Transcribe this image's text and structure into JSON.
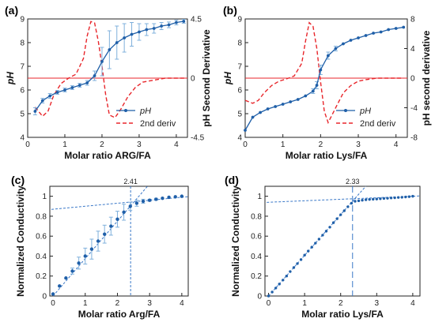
{
  "colors": {
    "ph": "#1f5fa8",
    "deriv": "#e8262b",
    "zero_line": "#e8262b",
    "fit": "#3a78c8",
    "err": "#7fb0dc"
  },
  "chart_data": [
    {
      "panel": "(a)",
      "type": "line",
      "xlabel": "Molar ratio ARG/FA",
      "ylabel": "pH",
      "ylabel_right": "pH Second Derivative",
      "xlim": [
        0,
        4.3
      ],
      "ylim": [
        4,
        9
      ],
      "ylim_right": [
        -4.5,
        4.5
      ],
      "xticks": [
        "0",
        "1",
        "2",
        "3",
        "4"
      ],
      "yticks": [
        "4",
        "5",
        "6",
        "7",
        "8",
        "9"
      ],
      "yticks_right": [
        "-4.5",
        "0",
        "4.5"
      ],
      "legend": [
        "pH",
        "2nd deriv"
      ],
      "series": [
        {
          "name": "pH",
          "x": [
            0.2,
            0.4,
            0.6,
            0.8,
            1.0,
            1.2,
            1.4,
            1.6,
            1.8,
            2.0,
            2.2,
            2.4,
            2.6,
            2.8,
            3.0,
            3.2,
            3.4,
            3.6,
            3.8,
            4.0,
            4.2
          ],
          "y": [
            5.1,
            5.55,
            5.75,
            5.9,
            6.0,
            6.1,
            6.2,
            6.3,
            6.6,
            7.2,
            7.7,
            8.0,
            8.2,
            8.35,
            8.45,
            8.55,
            8.6,
            8.7,
            8.75,
            8.85,
            8.9
          ],
          "err": [
            0.15,
            0.1,
            0.1,
            0.08,
            0.08,
            0.08,
            0.08,
            0.1,
            0.2,
            0.6,
            0.8,
            0.7,
            0.6,
            0.5,
            0.35,
            0.25,
            0.2,
            0.15,
            0.12,
            0.1,
            0.08
          ]
        },
        {
          "name": "2nd deriv",
          "x": [
            0.2,
            0.4,
            0.55,
            0.7,
            0.9,
            1.1,
            1.3,
            1.5,
            1.6,
            1.7,
            1.8,
            1.9,
            2.0,
            2.1,
            2.2,
            2.35,
            2.5,
            2.7,
            2.9,
            3.1,
            3.3,
            3.5,
            3.7,
            3.9,
            4.1,
            4.25
          ],
          "y": [
            -2.2,
            -2.9,
            -2.5,
            -1.3,
            -0.4,
            0,
            0.3,
            1.5,
            3.2,
            4.3,
            4.2,
            2.8,
            0.9,
            -1.3,
            -2.8,
            -3.0,
            -2.4,
            -1.4,
            -0.7,
            -0.3,
            -0.2,
            -0.1,
            0,
            0,
            0,
            0
          ]
        }
      ]
    },
    {
      "panel": "(b)",
      "type": "line",
      "xlabel": "Molar ratio Lys/FA",
      "ylabel": "pH",
      "ylabel_right": "pH second derivative",
      "xlim": [
        0,
        4.3
      ],
      "ylim": [
        4,
        9
      ],
      "ylim_right": [
        -8,
        8
      ],
      "xticks": [
        "0",
        "1",
        "2",
        "3",
        "4"
      ],
      "yticks": [
        "4",
        "5",
        "6",
        "7",
        "8",
        "9"
      ],
      "yticks_right": [
        "-8",
        "-4",
        "0",
        "4",
        "8"
      ],
      "legend": [
        "pH",
        "2nd deriv"
      ],
      "series": [
        {
          "name": "pH",
          "x": [
            0.0,
            0.2,
            0.4,
            0.6,
            0.8,
            1.0,
            1.2,
            1.4,
            1.6,
            1.8,
            1.9,
            2.0,
            2.2,
            2.4,
            2.6,
            2.8,
            3.0,
            3.2,
            3.4,
            3.6,
            3.8,
            4.0,
            4.2
          ],
          "y": [
            4.3,
            4.85,
            5.05,
            5.2,
            5.3,
            5.4,
            5.5,
            5.6,
            5.75,
            5.95,
            6.2,
            6.85,
            7.45,
            7.75,
            7.95,
            8.1,
            8.2,
            8.3,
            8.4,
            8.45,
            8.55,
            8.6,
            8.65
          ],
          "err": [
            0,
            0,
            0,
            0,
            0,
            0,
            0,
            0,
            0,
            0.1,
            0.15,
            0.2,
            0.15,
            0.1,
            0,
            0,
            0,
            0,
            0,
            0,
            0,
            0,
            0
          ]
        },
        {
          "name": "2nd deriv",
          "x": [
            0.0,
            0.2,
            0.35,
            0.5,
            0.7,
            0.9,
            1.1,
            1.3,
            1.5,
            1.6,
            1.7,
            1.8,
            1.9,
            2.0,
            2.1,
            2.2,
            2.3,
            2.45,
            2.6,
            2.8,
            3.0,
            3.2,
            3.5,
            3.8,
            4.2
          ],
          "y": [
            -3.0,
            -3.4,
            -3.0,
            -2.0,
            -1.0,
            -0.4,
            -0.1,
            0.3,
            2.0,
            5.0,
            7.5,
            7.0,
            4.0,
            -0.5,
            -4.5,
            -6.0,
            -5.0,
            -3.5,
            -2.0,
            -1.0,
            -0.4,
            -0.2,
            0,
            0,
            0
          ]
        }
      ]
    },
    {
      "panel": "(c)",
      "type": "scatter",
      "xlabel": "Molar ratio Arg/FA",
      "ylabel": "Normalized Conductivity",
      "xlim": [
        -0.1,
        4.2
      ],
      "ylim": [
        0,
        1.1
      ],
      "xticks": [
        "0",
        "1",
        "2",
        "3",
        "4"
      ],
      "yticks": [
        "0",
        "0.2",
        "0.4",
        "0.6",
        "0.8",
        "1"
      ],
      "annotation": "2.41",
      "intersection_x": 2.41,
      "fit_lines": [
        {
          "slope": 0.375,
          "intercept": 0
        },
        {
          "slope": 0.03,
          "intercept": 0.87
        }
      ],
      "series": [
        {
          "name": "",
          "x": [
            0,
            0.2,
            0.4,
            0.6,
            0.8,
            1.0,
            1.2,
            1.4,
            1.6,
            1.8,
            2.0,
            2.2,
            2.4,
            2.6,
            2.8,
            3.0,
            3.2,
            3.4,
            3.6,
            3.8,
            4.0
          ],
          "y": [
            0.02,
            0.1,
            0.18,
            0.25,
            0.33,
            0.4,
            0.47,
            0.55,
            0.62,
            0.7,
            0.77,
            0.84,
            0.9,
            0.93,
            0.95,
            0.96,
            0.97,
            0.98,
            0.99,
            0.995,
            1.0
          ],
          "err": [
            0,
            0,
            0,
            0.03,
            0.06,
            0.08,
            0.1,
            0.1,
            0.09,
            0.09,
            0.08,
            0.08,
            0.04,
            0.03,
            0.02,
            0.01,
            0.01,
            0,
            0,
            0,
            0
          ]
        }
      ]
    },
    {
      "panel": "(d)",
      "type": "scatter",
      "xlabel": "Molar ratio Lys/FA",
      "ylabel": "Normalized Conductivity",
      "xlim": [
        -0.1,
        4.2
      ],
      "ylim": [
        0,
        1.1
      ],
      "xticks": [
        "0",
        "1",
        "2",
        "3",
        "4"
      ],
      "yticks": [
        "0",
        "0.2",
        "0.4",
        "0.6",
        "0.8",
        "1"
      ],
      "annotation": "2.33",
      "intersection_x": 2.33,
      "fit_lines": [
        {
          "slope": 0.408,
          "intercept": 0
        },
        {
          "slope": 0.015,
          "intercept": 0.94
        }
      ],
      "series": [
        {
          "name": "",
          "x": [
            0,
            0.1,
            0.2,
            0.3,
            0.4,
            0.5,
            0.6,
            0.7,
            0.8,
            0.9,
            1.0,
            1.1,
            1.2,
            1.3,
            1.4,
            1.5,
            1.6,
            1.7,
            1.8,
            1.9,
            2.0,
            2.1,
            2.2,
            2.3,
            2.4,
            2.5,
            2.6,
            2.7,
            2.8,
            2.9,
            3.0,
            3.1,
            3.2,
            3.3,
            3.4,
            3.5,
            3.6,
            3.7,
            3.8,
            3.9,
            4.0
          ],
          "y": [
            0.0,
            0.04,
            0.08,
            0.12,
            0.16,
            0.2,
            0.245,
            0.285,
            0.325,
            0.365,
            0.41,
            0.45,
            0.49,
            0.53,
            0.57,
            0.61,
            0.65,
            0.69,
            0.735,
            0.775,
            0.815,
            0.855,
            0.895,
            0.93,
            0.95,
            0.955,
            0.96,
            0.965,
            0.968,
            0.97,
            0.972,
            0.975,
            0.978,
            0.98,
            0.983,
            0.985,
            0.988,
            0.99,
            0.993,
            0.996,
            1.0
          ]
        }
      ]
    }
  ]
}
